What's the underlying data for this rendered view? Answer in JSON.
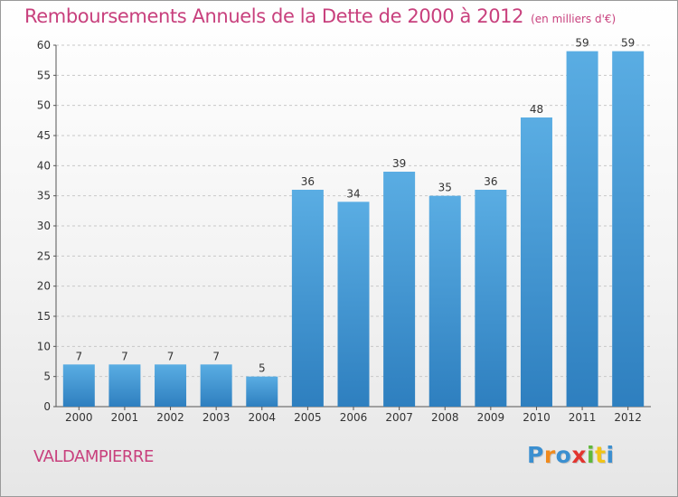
{
  "chart_data": {
    "type": "bar",
    "title": "Remboursements Annuels de la Dette de 2000 à 2012",
    "subtitle": "(en milliers d'€)",
    "categories": [
      "2000",
      "2001",
      "2002",
      "2003",
      "2004",
      "2005",
      "2006",
      "2007",
      "2008",
      "2009",
      "2010",
      "2011",
      "2012"
    ],
    "values": [
      7,
      7,
      7,
      7,
      5,
      36,
      34,
      39,
      35,
      36,
      48,
      59,
      59
    ],
    "ylim": [
      0,
      60
    ],
    "yticks": [
      0,
      5,
      10,
      15,
      20,
      25,
      30,
      35,
      40,
      45,
      50,
      55,
      60
    ],
    "xlabel": "",
    "ylabel": "",
    "grid": true,
    "bar_color_light": "#5aade3",
    "bar_color_dark": "#2e7fbf"
  },
  "commune": "VALDAMPIERRE",
  "logo": {
    "letters": [
      "P",
      "r",
      "o",
      "x",
      "i",
      "t",
      "i"
    ],
    "colors": [
      "#3b8fd0",
      "#f08a1c",
      "#3b8fd0",
      "#e2352f",
      "#5fb83a",
      "#f0c419",
      "#3b8fd0"
    ]
  },
  "colors": {
    "title": "#c8407d",
    "grid": "#c8c8c8",
    "axis_text": "#333333"
  }
}
